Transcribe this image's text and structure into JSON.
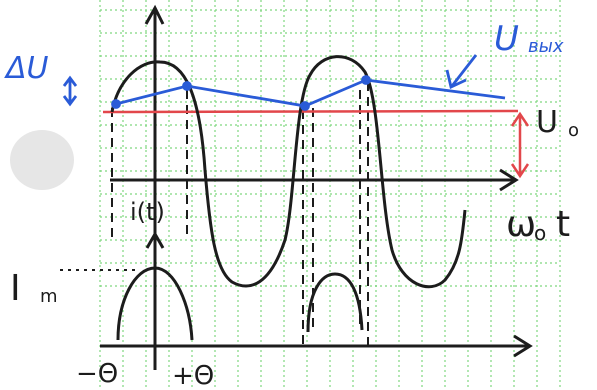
{
  "labels": {
    "delta_u": "ΔU",
    "u_out_main": "U",
    "u_out_sub": "вых",
    "u0_main": "U",
    "u0_sub": "o",
    "omega_t": "ω",
    "omega_t_sub": "o",
    "omega_t_t": "t",
    "i_of_t": "i(t)",
    "im_main": "I",
    "im_sub": "m",
    "minus_theta": "−Θ",
    "plus_theta": "+Θ"
  },
  "colors": {
    "background": "#ffffff",
    "grid": "#7fd77f",
    "ink": "#1c1c1c",
    "blue": "#2a5bd7",
    "red": "#e2474b",
    "blob": "#e6e6e6"
  }
}
